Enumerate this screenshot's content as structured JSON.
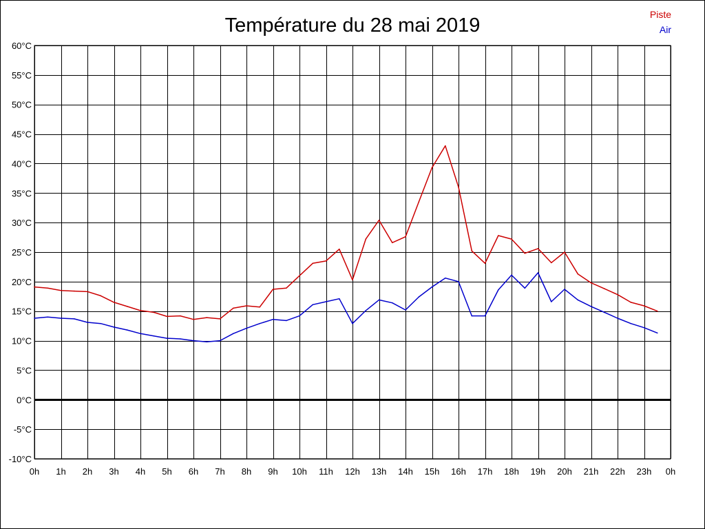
{
  "chart_data": {
    "type": "line",
    "title": "Température du 28 mai 2019",
    "x_tick_labels": [
      "0h",
      "1h",
      "2h",
      "3h",
      "4h",
      "5h",
      "6h",
      "7h",
      "8h",
      "9h",
      "10h",
      "11h",
      "12h",
      "13h",
      "14h",
      "15h",
      "16h",
      "17h",
      "18h",
      "19h",
      "20h",
      "21h",
      "22h",
      "23h",
      "0h"
    ],
    "y_tick_labels": [
      "60°C",
      "55°C",
      "50°C",
      "45°C",
      "40°C",
      "35°C",
      "30°C",
      "25°C",
      "20°C",
      "15°C",
      "10°C",
      "5°C",
      "0°C",
      "-5°C",
      "-10°C"
    ],
    "y_ticks": [
      60,
      55,
      50,
      45,
      40,
      35,
      30,
      25,
      20,
      15,
      10,
      5,
      0,
      -5,
      -10
    ],
    "ylim": [
      -10,
      60
    ],
    "xlim": [
      0,
      24
    ],
    "grid": true,
    "zero_line": true,
    "legend_position": "top-right",
    "x": [
      0,
      0.5,
      1,
      1.5,
      2,
      2.5,
      3,
      3.5,
      4,
      4.5,
      5,
      5.5,
      6,
      6.5,
      7,
      7.5,
      8,
      8.5,
      9,
      9.5,
      10,
      10.5,
      11,
      11.5,
      12,
      12.5,
      13,
      13.5,
      14,
      14.5,
      15,
      15.5,
      16,
      16.5,
      17,
      17.5,
      18,
      18.5,
      19,
      19.5,
      20,
      20.5,
      21,
      21.5,
      22,
      22.5,
      23,
      23.5
    ],
    "series": [
      {
        "name": "Piste",
        "color": "#cc0000",
        "values": [
          19.1,
          18.9,
          18.5,
          18.4,
          18.3,
          17.6,
          16.5,
          15.8,
          15.1,
          14.8,
          14.1,
          14.2,
          13.6,
          13.9,
          13.7,
          15.5,
          15.9,
          15.7,
          18.7,
          18.9,
          21.0,
          23.1,
          23.5,
          25.5,
          20.3,
          27.2,
          30.4,
          26.6,
          27.6,
          33.5,
          39.3,
          43.0,
          36.0,
          25.2,
          23.1,
          27.8,
          27.2,
          24.8,
          25.6,
          23.2,
          25.0,
          21.3,
          19.8,
          18.8,
          17.8,
          16.5,
          15.9,
          15.0
        ]
      },
      {
        "name": "Air",
        "color": "#0000cc",
        "values": [
          13.8,
          14.0,
          13.8,
          13.7,
          13.1,
          12.9,
          12.3,
          11.8,
          11.2,
          10.8,
          10.4,
          10.3,
          10.0,
          9.8,
          10.0,
          11.2,
          12.1,
          12.9,
          13.6,
          13.4,
          14.2,
          16.1,
          16.6,
          17.1,
          12.9,
          15.1,
          16.9,
          16.4,
          15.2,
          17.4,
          19.1,
          20.6,
          20.0,
          14.2,
          14.2,
          18.6,
          21.1,
          18.9,
          21.5,
          16.6,
          18.7,
          16.9,
          15.8,
          14.8,
          13.8,
          12.9,
          12.2,
          11.3
        ]
      }
    ]
  }
}
